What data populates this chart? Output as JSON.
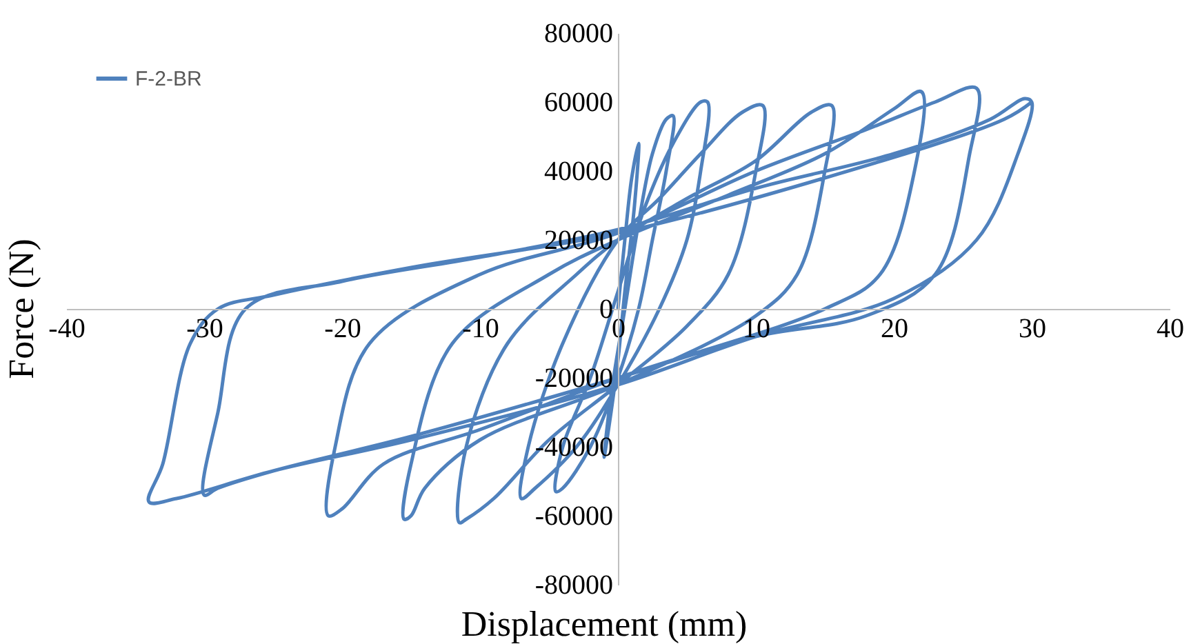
{
  "chart_data": {
    "type": "line",
    "xlabel": "Displacement (mm)",
    "ylabel": "Force (N)",
    "xlim": [
      -40,
      40
    ],
    "xticks": [
      -40,
      -30,
      -20,
      -10,
      0,
      10,
      20,
      30,
      40
    ],
    "ylim": [
      -80000,
      80000
    ],
    "yticks": [
      -80000,
      -60000,
      -40000,
      -20000,
      0,
      20000,
      40000,
      60000,
      80000
    ],
    "grid": false,
    "legend": "top left",
    "marker": "none",
    "line_style": "solid",
    "series": [
      {
        "name": "F-2-BR",
        "color": "#4f81bd",
        "x": [
          0,
          0.5,
          1,
          1.5,
          1.2,
          0.5,
          0,
          -0.5,
          -1,
          -0.5,
          0.5,
          1.5,
          2.5,
          3.5,
          4,
          3.5,
          2.5,
          1.5,
          0,
          -2,
          -4,
          -4.5,
          -4,
          -2,
          0,
          2,
          4,
          6,
          6.5,
          6,
          5,
          3,
          0,
          -3,
          -6,
          -7,
          -6.5,
          -4,
          0,
          3,
          6,
          9,
          10.5,
          10,
          8,
          5,
          0,
          -5,
          -9,
          -11,
          -11.5,
          -11,
          -8,
          -3,
          0,
          5,
          10,
          14,
          15.5,
          15,
          13,
          10,
          0,
          -10,
          -14,
          -15,
          -15.5,
          -15,
          -12,
          -5,
          0,
          8,
          15,
          20,
          22,
          21.5,
          19,
          15,
          0,
          -10,
          -17,
          -20,
          -21,
          -20.5,
          -18,
          -10,
          0,
          10,
          18,
          23,
          26,
          25.5,
          23,
          18,
          10,
          0,
          -15,
          -25,
          -29,
          -30,
          -29,
          -27,
          -20,
          -10,
          0,
          10,
          20,
          27,
          29.5,
          30,
          29,
          26,
          20,
          10,
          0,
          -15,
          -25,
          -32,
          -34,
          -33,
          -31,
          -29,
          -25,
          -15,
          0,
          15,
          28,
          30
        ],
        "values": [
          0,
          20000,
          38000,
          48000,
          30000,
          5000,
          -15000,
          -30000,
          -43000,
          -25000,
          0,
          25000,
          45000,
          55000,
          56000,
          40000,
          20000,
          0,
          -20000,
          -40000,
          -52000,
          -53000,
          -40000,
          -20000,
          5000,
          30000,
          48000,
          60000,
          60000,
          40000,
          20000,
          0,
          -22000,
          -40000,
          -52000,
          -55000,
          -40000,
          -10000,
          20000,
          32000,
          45000,
          57000,
          59000,
          40000,
          10000,
          -5000,
          -22000,
          -38000,
          -55000,
          -61000,
          -62000,
          -40000,
          -10000,
          10000,
          20000,
          32000,
          43000,
          57000,
          59000,
          40000,
          10000,
          -2000,
          -22000,
          -38000,
          -52000,
          -60000,
          -61000,
          -45000,
          -10000,
          10000,
          20000,
          33000,
          45000,
          58000,
          63000,
          40000,
          10000,
          0,
          -20000,
          -35000,
          -45000,
          -58000,
          -60000,
          -40000,
          -10000,
          10000,
          22000,
          40000,
          52000,
          60000,
          64000,
          45000,
          10000,
          -2000,
          -8000,
          -20000,
          -37000,
          -47000,
          -52000,
          -54000,
          -30000,
          0,
          8000,
          15000,
          23000,
          35000,
          45000,
          55000,
          61000,
          60000,
          45000,
          20000,
          3000,
          -8000,
          -22000,
          -38000,
          -47000,
          -55000,
          -56000,
          -45000,
          -10000,
          0,
          4000,
          12000,
          22000,
          38000,
          55000,
          60000
        ]
      }
    ]
  }
}
